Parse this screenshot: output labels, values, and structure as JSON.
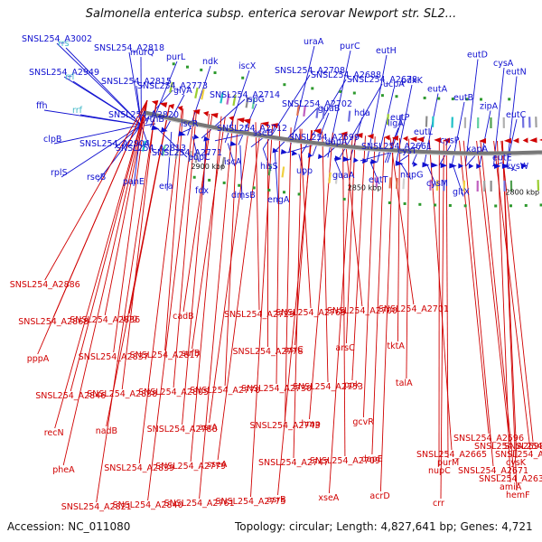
{
  "title": "Salmonella enterica subsp. enterica serovar Newport str. SL2...",
  "footer": {
    "accession": "Accession: NC_011080",
    "meta": "Topology: circular; Length: 4,827,641 bp; Genes: 4,721"
  },
  "colors": {
    "forward": "#1010d0",
    "reverse": "#d00000",
    "rna": "#40b8c8",
    "backbone": "#777777",
    "marker": "#2e9a2e"
  },
  "ticks": [
    "2900 kbp",
    "2850 kbp",
    "2800 kbp",
    "2750 kbp",
    "2700 kbp",
    "2650 kbp",
    "2600 kbp",
    "2550 kbp"
  ],
  "forward_labels": [
    "SNSL254_A3002",
    "SNSL254_A2949",
    "ffh",
    "clpB",
    "rplS",
    "rrs",
    "rrl",
    "rrf",
    "SNSL254_A2904",
    "rseB",
    "SNSL254_A2818",
    "SNSL254_A2815",
    "SNSL254_A2820",
    "SNSL254_A2813",
    "panE",
    "murQ",
    "SNSL254_A2773",
    "ythB",
    "SNSL254_A2771",
    "era",
    "purL",
    "glyA",
    "iscR",
    "pbpC",
    "fdx",
    "ndk",
    "SNSL254_A2714",
    "SNSL254_A2712",
    "iscA",
    "dmsB",
    "iscX",
    "ispG",
    "sseB",
    "hisS",
    "engA",
    "SNSL254_A2708",
    "SNSL254_A2702",
    "SNSL254_A2699",
    "upp",
    "uraA",
    "SNSL254_A2688",
    "guaB",
    "dapA",
    "guaA",
    "purC",
    "SNSL254_A2678",
    "hda",
    "SNSL254_A2661",
    "eutT",
    "eutH",
    "ucpA",
    "eutP",
    "cysT",
    "eutD",
    "cysA",
    "eutN",
    "pdxK",
    "eutA",
    "eutB",
    "zipA",
    "eutC",
    "ligA",
    "eutL",
    "cysP",
    "xapA",
    "eutE",
    "cysW",
    "nupG",
    "cysM",
    "gltX"
  ],
  "reverse_labels": [
    "SNSL254_A2886",
    "SNSL254_A2868",
    "pppA",
    "SNSL254_A2846",
    "recN",
    "pheA",
    "SNSL254_A2821",
    "SNSL254_A2836",
    "SNSL254_A2837",
    "SNSL254_A2838",
    "nadB",
    "SNSL254_A2839",
    "SNSL254_A2840",
    "ung",
    "SNSL254_A2817",
    "SNSL254_A2805",
    "SNSL254_A2788",
    "SNSL254_A2779",
    "SNSL254_A2761",
    "cadB",
    "sufB",
    "SNSL254_A2770",
    "asrA",
    "sseA",
    "SNSL254_A2775",
    "SNSL254_A2729",
    "SNSL254_A2778",
    "SNSL254_A2730",
    "SNSL254_A2743",
    "SNSL254_A2747",
    "asrB",
    "SNSL254_A2769",
    "asrC",
    "SNSL254_A2753",
    "hmp",
    "SNSL254_A2709",
    "xseA",
    "SNSL254_A2700",
    "arsC",
    "ppk",
    "gcvR",
    "dapE",
    "acrD",
    "SNSL254_A2701",
    "tktA",
    "talA",
    "SNSL254_A2673",
    "SNSL254_A2665",
    "purM",
    "SNSL254_A2671",
    "SNSL254_A2633",
    "amiA",
    "hemF",
    "crr",
    "SNSL254_A2596",
    "SNSL254_A2598",
    "SNSL254_A2599",
    "cysK",
    "nupC"
  ]
}
